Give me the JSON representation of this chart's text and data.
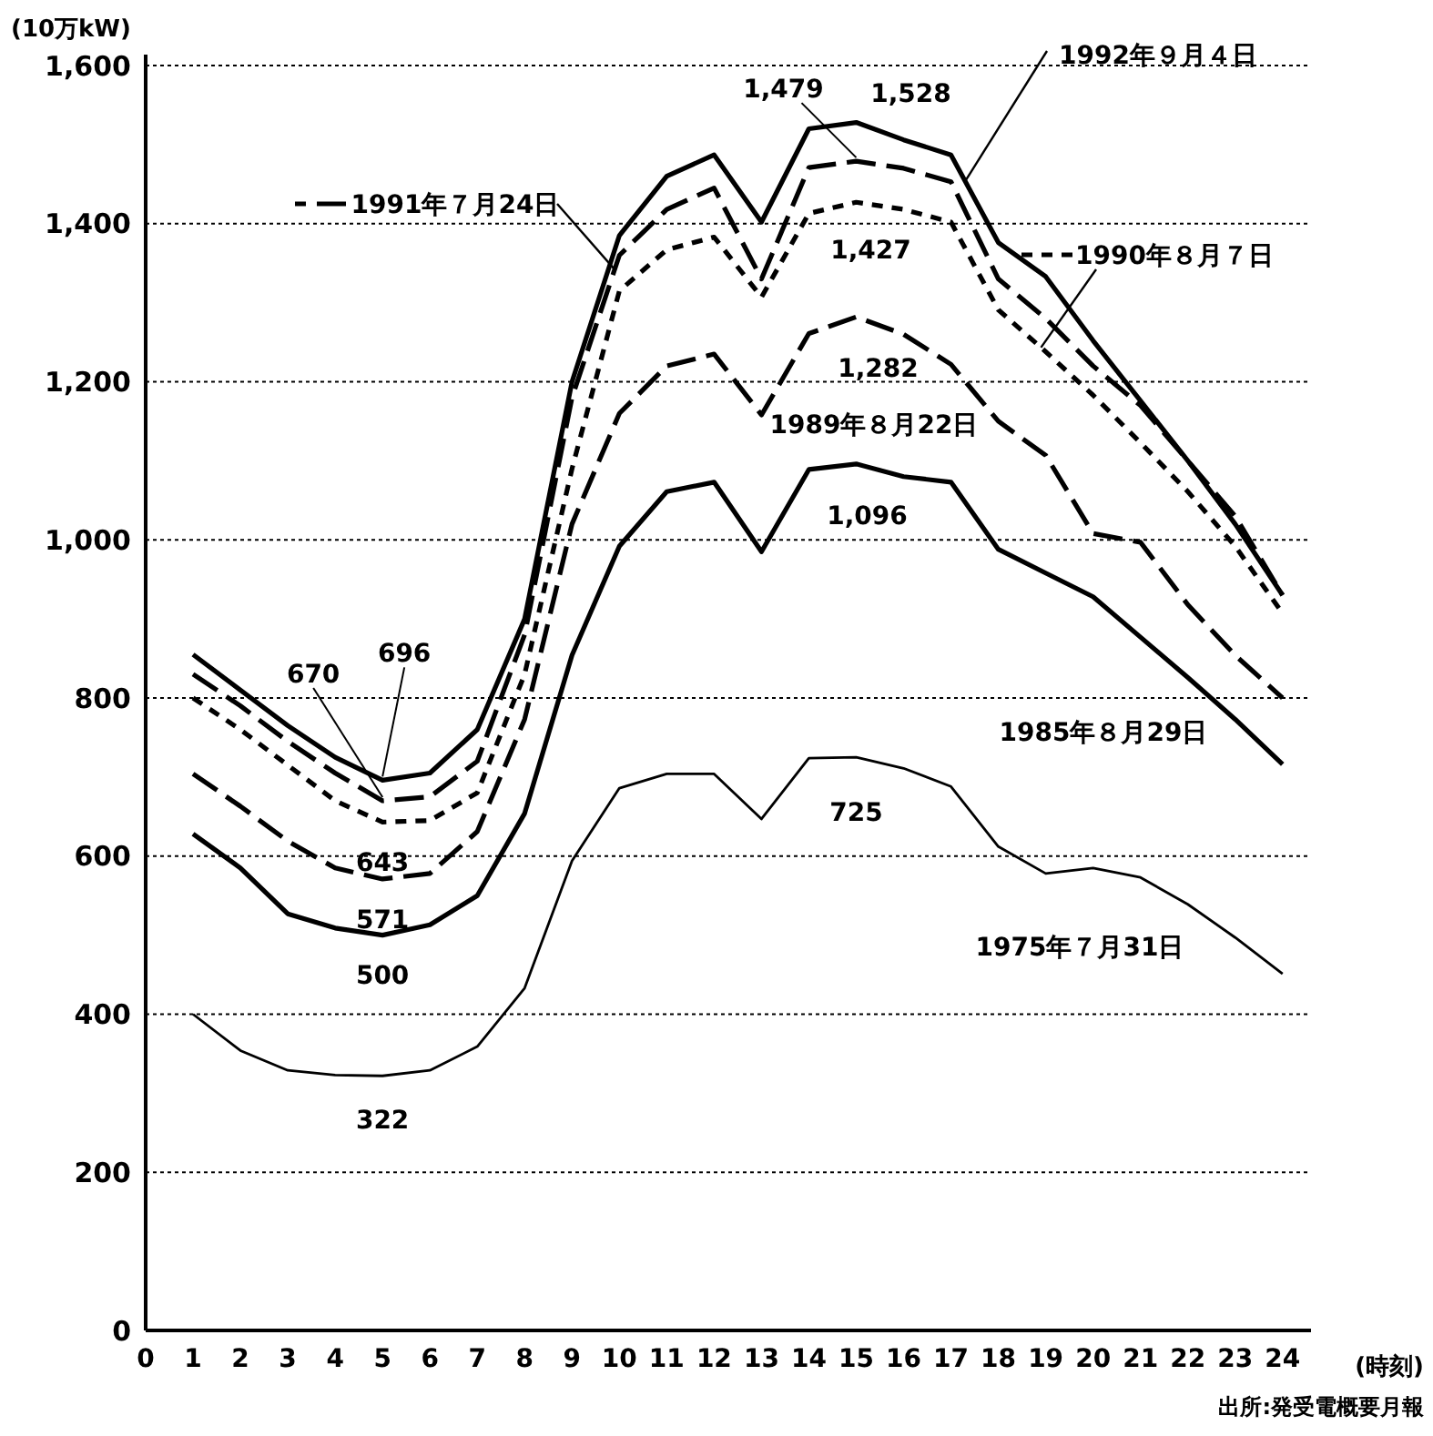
{
  "chart_data": {
    "type": "line",
    "ylabel": "(10万kW)",
    "xlabel": "(時刻)",
    "x": [
      1,
      2,
      3,
      4,
      5,
      6,
      7,
      8,
      9,
      10,
      11,
      12,
      13,
      14,
      15,
      16,
      17,
      18,
      19,
      20,
      21,
      22,
      23,
      24
    ],
    "xlim": [
      0,
      24.6
    ],
    "xticks": [
      0,
      1,
      2,
      3,
      4,
      5,
      6,
      7,
      8,
      9,
      10,
      11,
      12,
      13,
      14,
      15,
      16,
      17,
      18,
      19,
      20,
      21,
      22,
      23,
      24
    ],
    "ylim": [
      0,
      1600
    ],
    "yticks": [
      0,
      {
        "value": 200,
        "label": "200"
      },
      {
        "value": 400,
        "label": "400"
      },
      {
        "value": 600,
        "label": "600"
      },
      {
        "value": 800,
        "label": "800"
      },
      {
        "value": 1000,
        "label": "1,000"
      },
      {
        "value": 1200,
        "label": "1,200"
      },
      {
        "value": 1400,
        "label": "1,400"
      },
      {
        "value": 1600,
        "label": "1,600"
      }
    ],
    "grid": "y",
    "legend": "top",
    "marker": "none",
    "series": [
      {
        "name": "1992年９月４日",
        "color": "#000000",
        "line_style": "solid",
        "values": [
          855,
          810,
          765,
          725,
          696,
          705,
          760,
          900,
          1200,
          1385,
          1460,
          1487,
          1402,
          1520,
          1528,
          1506,
          1487,
          1376,
          1333,
          1252,
          1176,
          1100,
          1020,
          930
        ],
        "value_labels": [
          null,
          null,
          null,
          null,
          "696",
          null,
          null,
          null,
          null,
          null,
          null,
          null,
          null,
          null,
          "1,528",
          null,
          null,
          null,
          null,
          null,
          null,
          null,
          null,
          null
        ]
      },
      {
        "name": "1991年７月24日",
        "color": "#000000",
        "line_style": "dashed",
        "values": [
          830,
          790,
          745,
          705,
          670,
          675,
          720,
          880,
          1180,
          1360,
          1418,
          1445,
          1330,
          1471,
          1479,
          1470,
          1453,
          1330,
          1280,
          1220,
          1170,
          1100,
          1030,
          930
        ],
        "value_labels": [
          null,
          null,
          null,
          null,
          "670",
          null,
          null,
          null,
          null,
          null,
          null,
          null,
          null,
          null,
          "1,479",
          null,
          null,
          null,
          null,
          null,
          null,
          null,
          null,
          null
        ]
      },
      {
        "name": "1990年８月７日",
        "color": "#000000",
        "line_style": "dotted",
        "values": [
          800,
          760,
          715,
          670,
          643,
          645,
          680,
          830,
          1090,
          1315,
          1367,
          1383,
          1307,
          1413,
          1427,
          1418,
          1402,
          1291,
          1238,
          1183,
          1123,
          1061,
          992,
          907
        ],
        "value_labels": [
          null,
          null,
          null,
          null,
          "643",
          null,
          null,
          null,
          null,
          null,
          null,
          null,
          null,
          null,
          "1,427",
          null,
          null,
          null,
          null,
          null,
          null,
          null,
          null,
          null
        ]
      },
      {
        "name": "1989年８月22日",
        "color": "#000000",
        "line_style": "dashed",
        "values": [
          704,
          663,
          619,
          585,
          571,
          578,
          631,
          773,
          1020,
          1160,
          1220,
          1235,
          1158,
          1261,
          1282,
          1260,
          1222,
          1150,
          1107,
          1008,
          997,
          918,
          854,
          800
        ],
        "value_labels": [
          null,
          null,
          null,
          null,
          "571",
          null,
          null,
          null,
          null,
          null,
          null,
          null,
          null,
          null,
          "1,282",
          null,
          null,
          null,
          null,
          null,
          null,
          null,
          null,
          null
        ]
      },
      {
        "name": "1985年８月29日",
        "color": "#000000",
        "line_style": "solid",
        "values": [
          628,
          585,
          527,
          509,
          500,
          513,
          550,
          654,
          854,
          992,
          1061,
          1073,
          985,
          1089,
          1096,
          1080,
          1073,
          988,
          958,
          928,
          877,
          826,
          773,
          716
        ],
        "value_labels": [
          null,
          null,
          null,
          null,
          "500",
          null,
          null,
          null,
          null,
          null,
          null,
          null,
          null,
          null,
          "1,096",
          null,
          null,
          null,
          null,
          null,
          null,
          null,
          null,
          null
        ]
      },
      {
        "name": "1975年７月31日",
        "color": "#000000",
        "line_style": "solid",
        "values": [
          400,
          354,
          329,
          323,
          322,
          329,
          359,
          433,
          594,
          686,
          704,
          704,
          647,
          724,
          725,
          711,
          688,
          612,
          578,
          585,
          573,
          539,
          497,
          451
        ],
        "value_labels": [
          null,
          null,
          null,
          null,
          "322",
          null,
          null,
          null,
          null,
          null,
          null,
          null,
          null,
          null,
          "725",
          null,
          null,
          null,
          null,
          null,
          null,
          null,
          null,
          null
        ]
      }
    ],
    "annotations": [
      "出所:発受電概要月報"
    ]
  }
}
